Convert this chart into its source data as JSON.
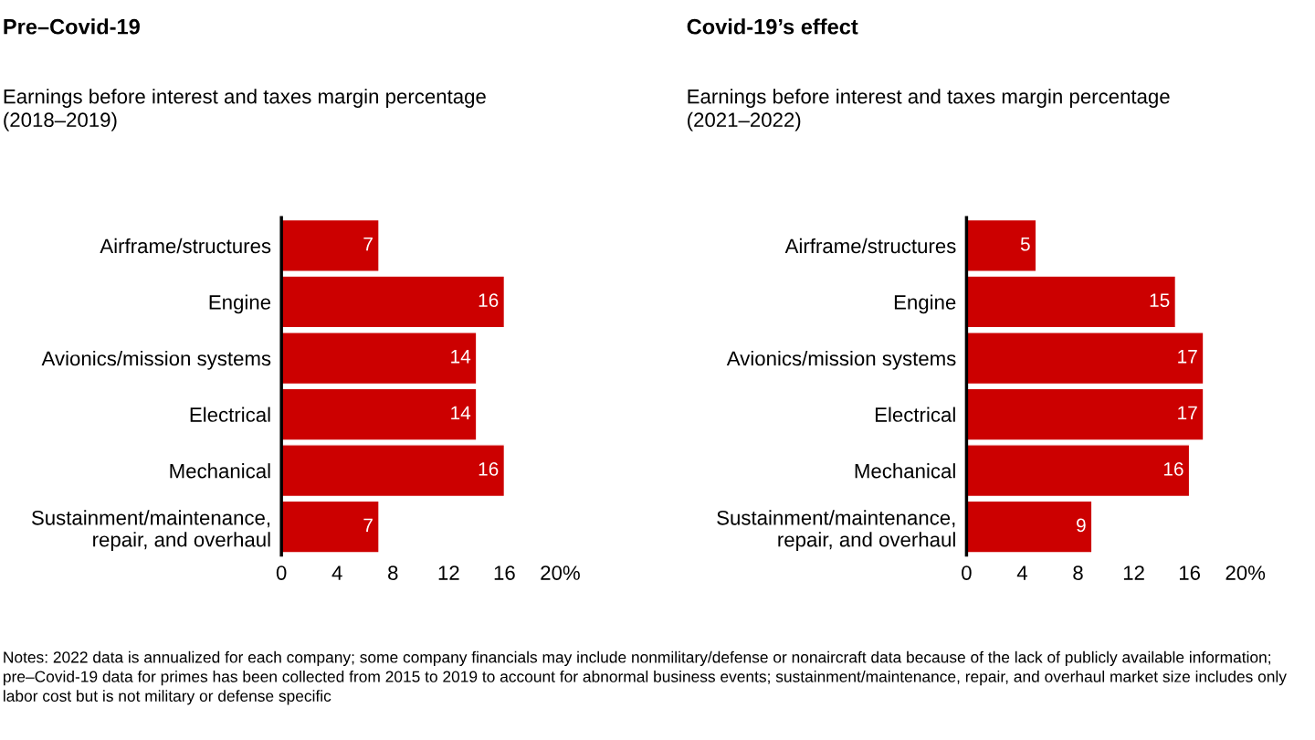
{
  "chart_data": [
    {
      "type": "bar",
      "orientation": "horizontal",
      "title": "Pre–Covid-19",
      "subtitle": "Earnings before interest and taxes margin percentage\n(2018–2019)",
      "categories": [
        "Airframe/structures",
        "Engine",
        "Avionics/mission systems",
        "Electrical",
        "Mechanical",
        "Sustainment/maintenance,\nrepair, and overhaul"
      ],
      "values": [
        7,
        16,
        14,
        14,
        16,
        7
      ],
      "color": "#cc0000",
      "data_labels": true,
      "xlim": [
        0,
        20
      ],
      "xticks": [
        0,
        4,
        8,
        12,
        16,
        {
          "value": 20,
          "label": "20%"
        }
      ],
      "grid": false,
      "legend": false,
      "annotations": [
        "Notes: 2022 data is annualized for each company; some company financials may include nonmilitary/defense or nonaircraft data because of the lack of publicly available information; pre–Covid-19 data for primes has been collected from 2015 to 2019 to account for abnormal business events; sustainment/maintenance, repair, and overhaul market size includes only labor cost but is not military or defense specific"
      ]
    },
    {
      "type": "bar",
      "orientation": "horizontal",
      "title": "Covid-19’s effect",
      "subtitle": "Earnings before interest and taxes margin percentage\n(2021–2022)",
      "categories": [
        "Airframe/structures",
        "Engine",
        "Avionics/mission systems",
        "Electrical",
        "Mechanical",
        "Sustainment/maintenance,\nrepair, and overhaul"
      ],
      "values": [
        5,
        15,
        17,
        17,
        16,
        9
      ],
      "color": "#cc0000",
      "data_labels": true,
      "xlim": [
        0,
        20
      ],
      "xticks": [
        0,
        4,
        8,
        12,
        16,
        {
          "value": 20,
          "label": "20%"
        }
      ],
      "grid": false,
      "legend": false
    }
  ]
}
